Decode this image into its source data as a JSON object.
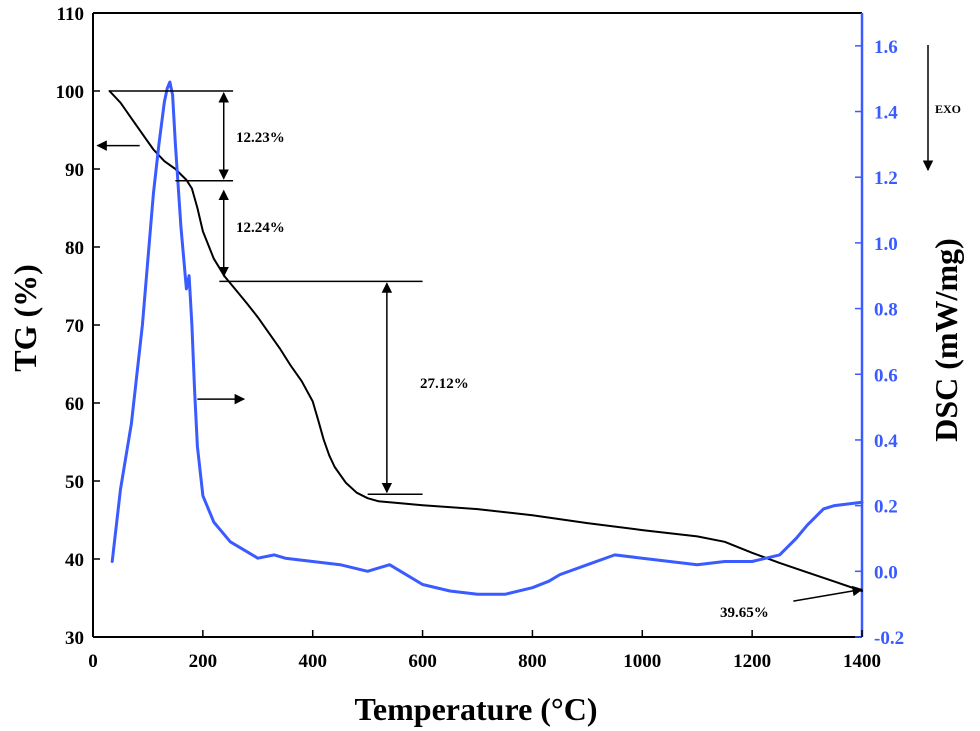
{
  "chart_data": {
    "type": "line",
    "xlabel": "Temperature (°C)",
    "ylabel": "TG (%)",
    "y2label": "DSC (mW/mg)",
    "xlim": [
      0,
      1400
    ],
    "ylim": [
      30,
      110
    ],
    "y2lim": [
      -0.2,
      1.7
    ],
    "x_ticks": [
      "0",
      "200",
      "400",
      "600",
      "800",
      "1000",
      "1200",
      "1400"
    ],
    "y_ticks": [
      "30",
      "40",
      "50",
      "60",
      "70",
      "80",
      "90",
      "100",
      "110"
    ],
    "y2_ticks": [
      "-0.2",
      "0.0",
      "0.2",
      "0.4",
      "0.6",
      "0.8",
      "1.0",
      "1.2",
      "1.4",
      "1.6"
    ],
    "grid": false,
    "colors": {
      "tg": "#000000",
      "dsc": "#3a5bff"
    },
    "series": [
      {
        "axis": "left",
        "x": [
          30,
          50,
          70,
          90,
          110,
          130,
          150,
          160,
          170,
          180,
          190,
          200,
          220,
          240,
          260,
          280,
          300,
          320,
          340,
          360,
          380,
          400,
          410,
          420,
          430,
          440,
          460,
          480,
          500,
          520,
          550,
          600,
          700,
          800,
          900,
          1000,
          1100,
          1150,
          1200,
          1250,
          1300,
          1350,
          1400
        ],
        "values": [
          100,
          98.5,
          96.5,
          94.5,
          92.5,
          91.0,
          90.0,
          89.3,
          88.6,
          87.5,
          85.0,
          82.0,
          78.5,
          76.2,
          74.5,
          72.8,
          71.0,
          69.0,
          67.0,
          64.8,
          62.8,
          60.2,
          57.8,
          55.3,
          53.3,
          51.8,
          49.8,
          48.5,
          47.8,
          47.4,
          47.2,
          46.9,
          46.4,
          45.6,
          44.6,
          43.7,
          42.9,
          42.2,
          40.8,
          39.5,
          38.3,
          37.1,
          35.9
        ]
      },
      {
        "axis": "right",
        "x": [
          35,
          50,
          70,
          90,
          100,
          110,
          120,
          130,
          135,
          140,
          145,
          150,
          160,
          170,
          175,
          180,
          185,
          190,
          200,
          220,
          250,
          300,
          330,
          350,
          400,
          450,
          500,
          540,
          560,
          600,
          650,
          700,
          750,
          800,
          830,
          850,
          900,
          950,
          1000,
          1050,
          1100,
          1150,
          1200,
          1250,
          1280,
          1300,
          1330,
          1350,
          1400
        ],
        "values": [
          0.03,
          0.25,
          0.45,
          0.75,
          0.95,
          1.15,
          1.3,
          1.43,
          1.47,
          1.49,
          1.45,
          1.3,
          1.05,
          0.86,
          0.9,
          0.75,
          0.55,
          0.38,
          0.23,
          0.15,
          0.09,
          0.04,
          0.05,
          0.04,
          0.03,
          0.02,
          0.0,
          0.02,
          0.0,
          -0.04,
          -0.06,
          -0.07,
          -0.07,
          -0.05,
          -0.03,
          -0.01,
          0.02,
          0.05,
          0.04,
          0.03,
          0.02,
          0.03,
          0.03,
          0.05,
          0.1,
          0.14,
          0.19,
          0.2,
          0.21
        ]
      }
    ],
    "annotations": {
      "step1": "12.23%",
      "step2": "12.24%",
      "step3": "27.12%",
      "residual": "39.65%",
      "exo": "EXO"
    }
  }
}
